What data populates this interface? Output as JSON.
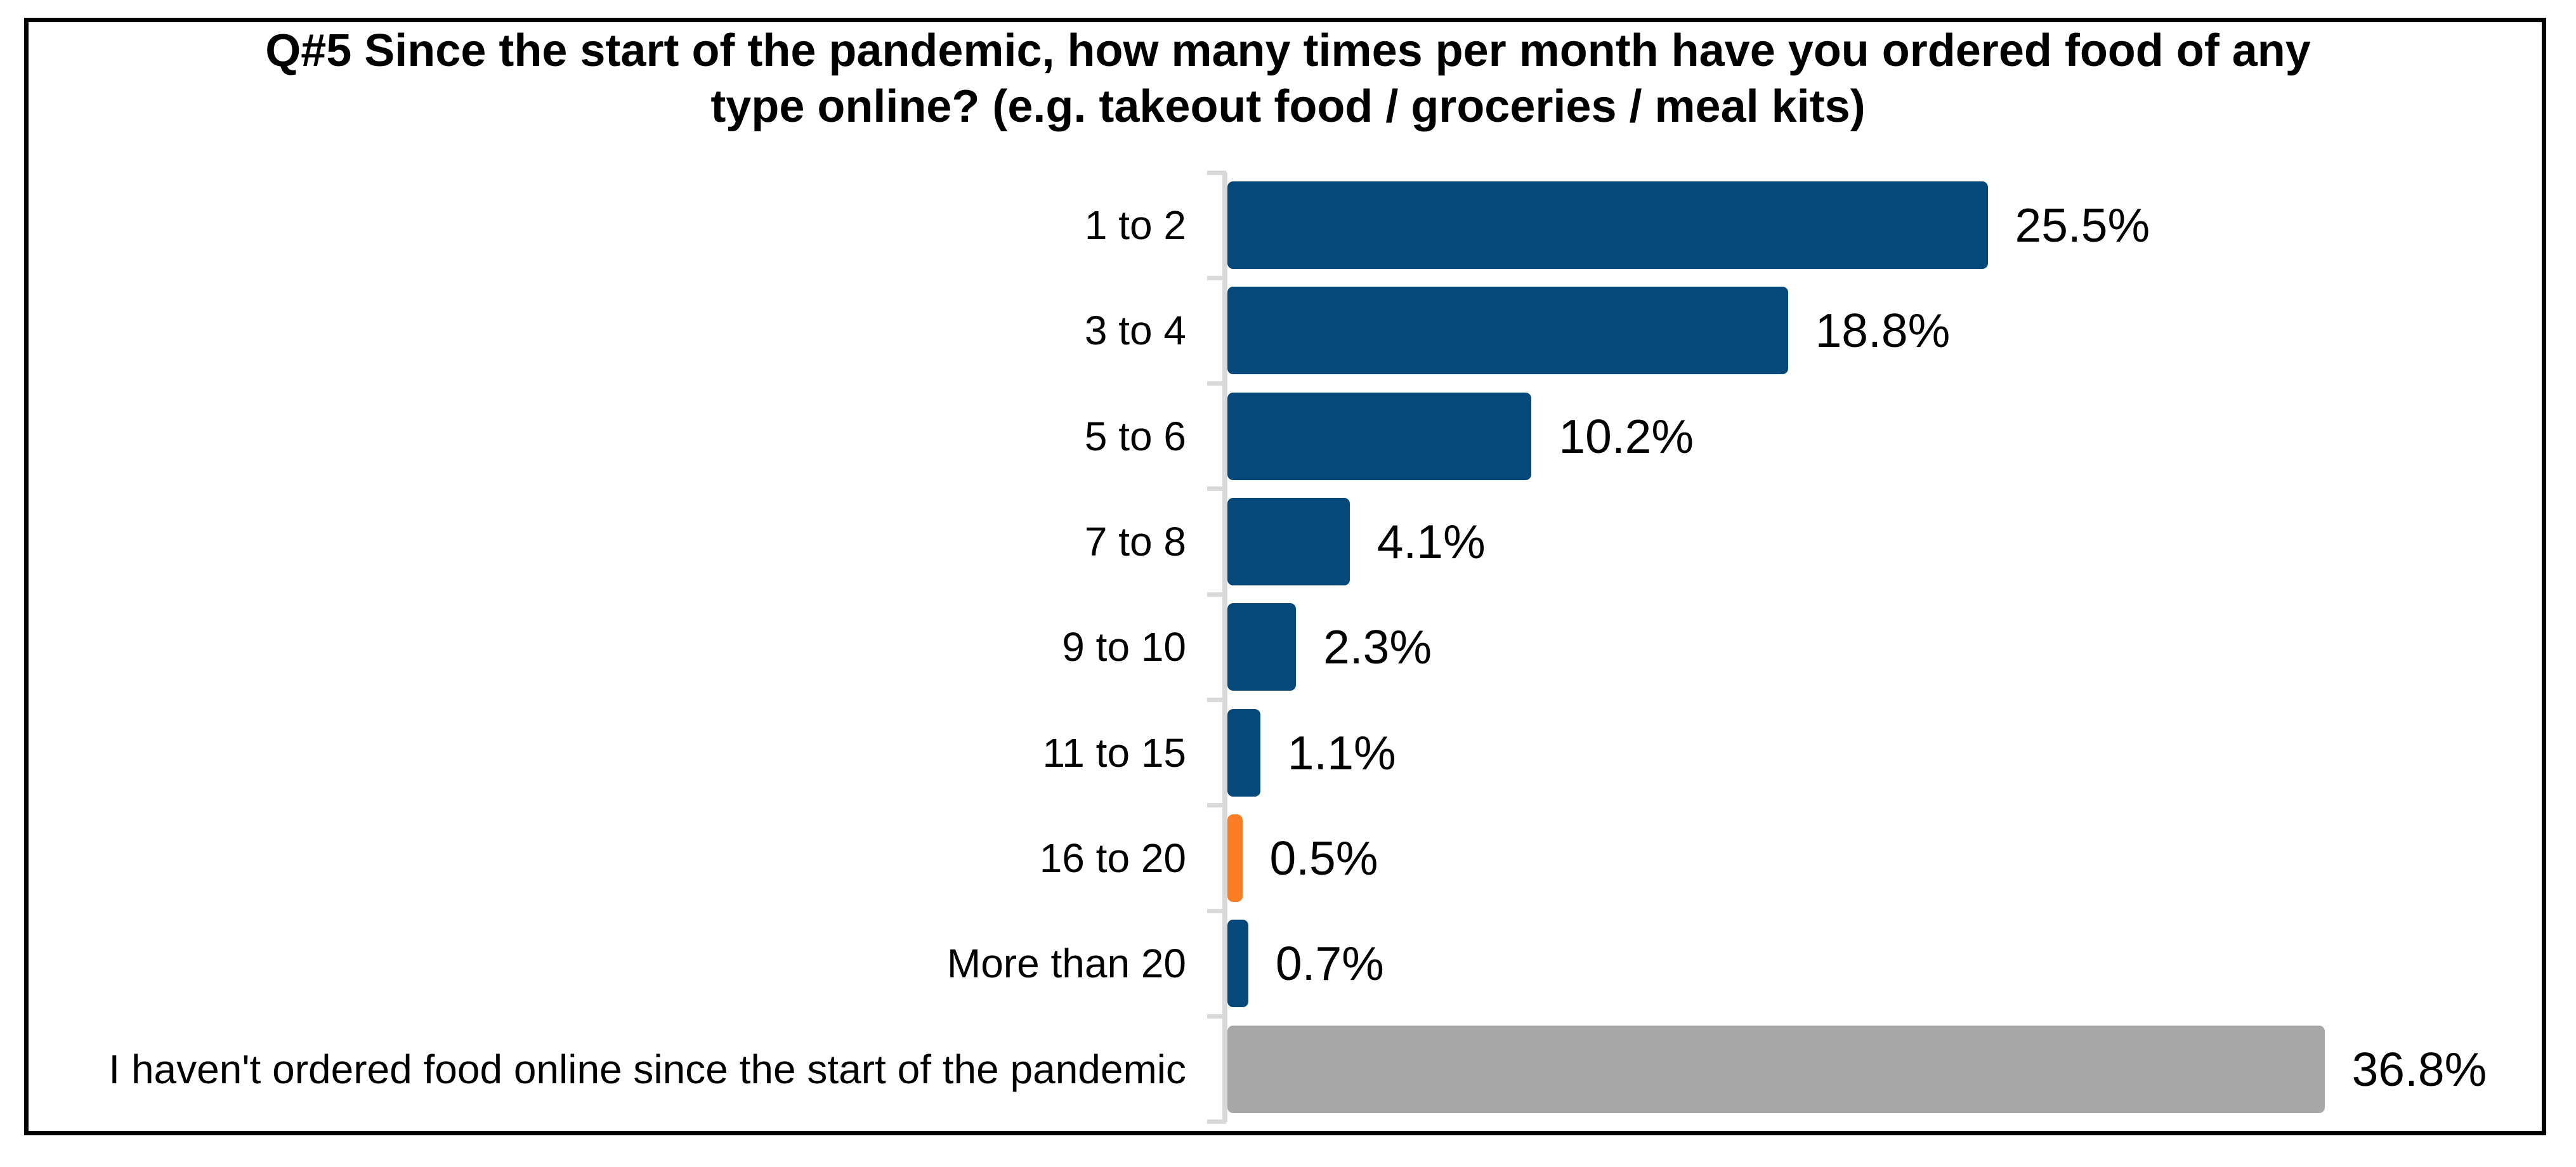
{
  "title": {
    "line1": "Q#5 Since the start of the pandemic, how many times per month have you ordered food of any",
    "line2": "type online? (e.g. takeout food / groceries / meal kits)"
  },
  "chart_data": {
    "type": "bar",
    "orientation": "horizontal",
    "title": "Q#5 Since the start of the pandemic, how many times per month have you ordered food of any type online? (e.g. takeout food / groceries / meal kits)",
    "categories": [
      "1 to 2",
      "3 to 4",
      "5 to 6",
      "7 to 8",
      "9 to 10",
      "11 to 15",
      "16 to 20",
      "More than 20",
      "I haven't ordered food online since the start of the pandemic"
    ],
    "values": [
      25.5,
      18.8,
      10.2,
      4.1,
      2.3,
      1.1,
      0.5,
      0.7,
      36.8
    ],
    "value_labels": [
      "25.5%",
      "18.8%",
      "10.2%",
      "4.1%",
      "2.3%",
      "1.1%",
      "0.5%",
      "0.7%",
      "36.8%"
    ],
    "bar_color_roles": [
      "default",
      "default",
      "default",
      "default",
      "default",
      "default",
      "highlight",
      "default",
      "muted"
    ],
    "colors": {
      "default": "#05497B",
      "highlight": "#FB7D26",
      "muted": "#A7A7A7",
      "axis": "#D9D9D9",
      "text": "#000000"
    },
    "xlabel": "",
    "ylabel": "",
    "xlim": [
      0,
      40
    ],
    "grid": false,
    "legend": false
  }
}
